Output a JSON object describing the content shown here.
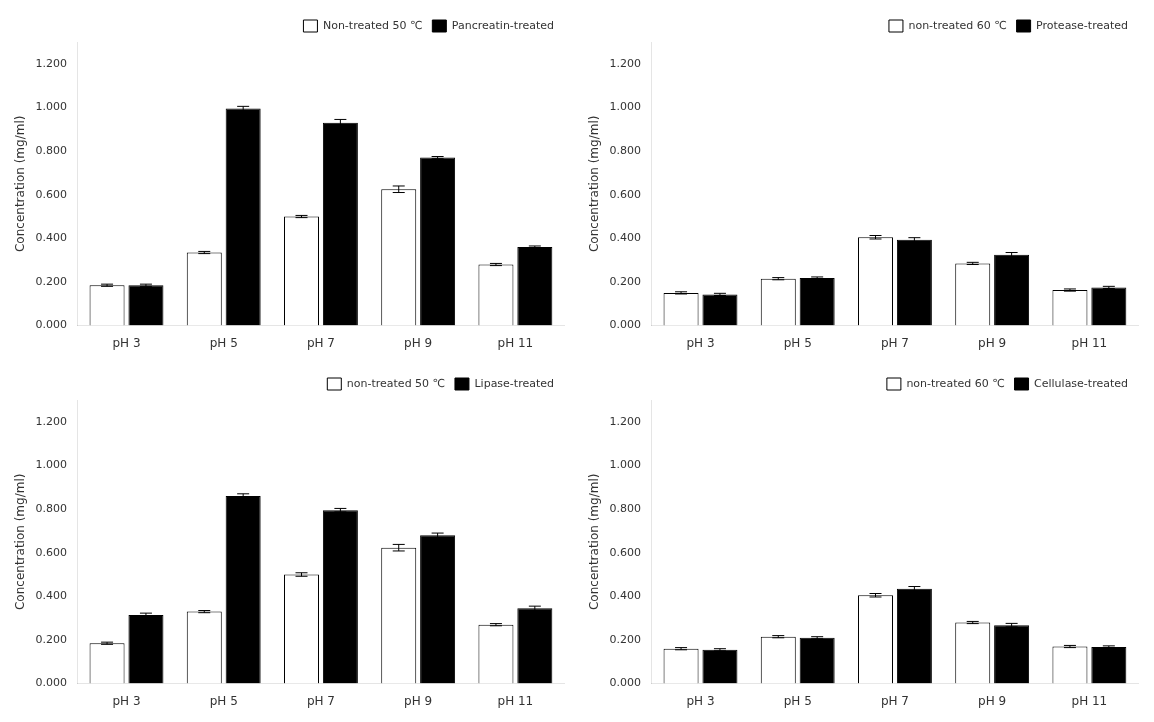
{
  "chart_data": [
    {
      "type": "bar",
      "categories": [
        "pH 3",
        "pH 5",
        "pH 7",
        "pH 9",
        "pH 11"
      ],
      "series": [
        {
          "name": "Non-treated 50 ℃",
          "color": "white",
          "values": [
            0.185,
            0.335,
            0.5,
            0.625,
            0.28
          ],
          "errors": [
            0.005,
            0.005,
            0.005,
            0.015,
            0.005
          ]
        },
        {
          "name": "Pancreatin-treated",
          "color": "black",
          "values": [
            0.185,
            0.995,
            0.93,
            0.77,
            0.36
          ],
          "errors": [
            0.005,
            0.01,
            0.015,
            0.005,
            0.005
          ]
        }
      ],
      "ylabel": "Concentration (mg/ml)",
      "ylim": [
        0,
        1.3
      ],
      "yticks": [
        {
          "value": 0.0,
          "label": "0.000"
        },
        {
          "value": 0.2,
          "label": "0.200"
        },
        {
          "value": 0.4,
          "label": "0.400"
        },
        {
          "value": 0.6,
          "label": "0.600"
        },
        {
          "value": 0.8,
          "label": "0.800"
        },
        {
          "value": 1.0,
          "label": "1.000"
        },
        {
          "value": 1.2,
          "label": "1.200"
        }
      ],
      "grid": false,
      "legend": "upper right"
    },
    {
      "type": "bar",
      "categories": [
        "pH 3",
        "pH 5",
        "pH 7",
        "pH 9",
        "pH 11"
      ],
      "series": [
        {
          "name": "non-treated 60 ℃",
          "color": "white",
          "values": [
            0.15,
            0.215,
            0.405,
            0.285,
            0.163
          ],
          "errors": [
            0.005,
            0.005,
            0.008,
            0.005,
            0.005
          ]
        },
        {
          "name": "Protease-treated",
          "color": "black",
          "values": [
            0.143,
            0.218,
            0.393,
            0.325,
            0.175
          ],
          "errors": [
            0.005,
            0.005,
            0.01,
            0.01,
            0.005
          ]
        }
      ],
      "ylabel": "Concentration (mg/ml)",
      "ylim": [
        0,
        1.3
      ],
      "yticks": [
        {
          "value": 0.0,
          "label": "0.000"
        },
        {
          "value": 0.2,
          "label": "0.200"
        },
        {
          "value": 0.4,
          "label": "0.400"
        },
        {
          "value": 0.6,
          "label": "0.600"
        },
        {
          "value": 0.8,
          "label": "0.800"
        },
        {
          "value": 1.0,
          "label": "1.000"
        },
        {
          "value": 1.2,
          "label": "1.200"
        }
      ],
      "grid": false,
      "legend": "upper right"
    },
    {
      "type": "bar",
      "categories": [
        "pH 3",
        "pH 5",
        "pH 7",
        "pH 9",
        "pH 11"
      ],
      "series": [
        {
          "name": "non-treated 50 ℃",
          "color": "white",
          "values": [
            0.185,
            0.33,
            0.5,
            0.623,
            0.27
          ],
          "errors": [
            0.005,
            0.005,
            0.008,
            0.015,
            0.005
          ]
        },
        {
          "name": "Lipase-treated",
          "color": "black",
          "values": [
            0.315,
            0.86,
            0.795,
            0.68,
            0.345
          ],
          "errors": [
            0.008,
            0.01,
            0.008,
            0.01,
            0.01
          ]
        }
      ],
      "ylabel": "Concentration (mg/ml)",
      "ylim": [
        0,
        1.3
      ],
      "yticks": [
        {
          "value": 0.0,
          "label": "0.000"
        },
        {
          "value": 0.2,
          "label": "0.200"
        },
        {
          "value": 0.4,
          "label": "0.400"
        },
        {
          "value": 0.6,
          "label": "0.600"
        },
        {
          "value": 0.8,
          "label": "0.800"
        },
        {
          "value": 1.0,
          "label": "1.000"
        },
        {
          "value": 1.2,
          "label": "1.200"
        }
      ],
      "grid": false,
      "legend": "upper right"
    },
    {
      "type": "bar",
      "categories": [
        "pH 3",
        "pH 5",
        "pH 7",
        "pH 9",
        "pH 11"
      ],
      "series": [
        {
          "name": "non-treated 60 ℃",
          "color": "white",
          "values": [
            0.16,
            0.215,
            0.405,
            0.28,
            0.17
          ],
          "errors": [
            0.005,
            0.005,
            0.008,
            0.005,
            0.005
          ]
        },
        {
          "name": "Cellulase-treated",
          "color": "black",
          "values": [
            0.155,
            0.21,
            0.435,
            0.268,
            0.168
          ],
          "errors": [
            0.005,
            0.005,
            0.01,
            0.008,
            0.005
          ]
        }
      ],
      "ylabel": "Concentration (mg/ml)",
      "ylim": [
        0,
        1.3
      ],
      "yticks": [
        {
          "value": 0.0,
          "label": "0.000"
        },
        {
          "value": 0.2,
          "label": "0.200"
        },
        {
          "value": 0.4,
          "label": "0.400"
        },
        {
          "value": 0.6,
          "label": "0.600"
        },
        {
          "value": 0.8,
          "label": "0.800"
        },
        {
          "value": 1.0,
          "label": "1.000"
        },
        {
          "value": 1.2,
          "label": "1.200"
        }
      ],
      "grid": false,
      "legend": "upper right"
    }
  ]
}
